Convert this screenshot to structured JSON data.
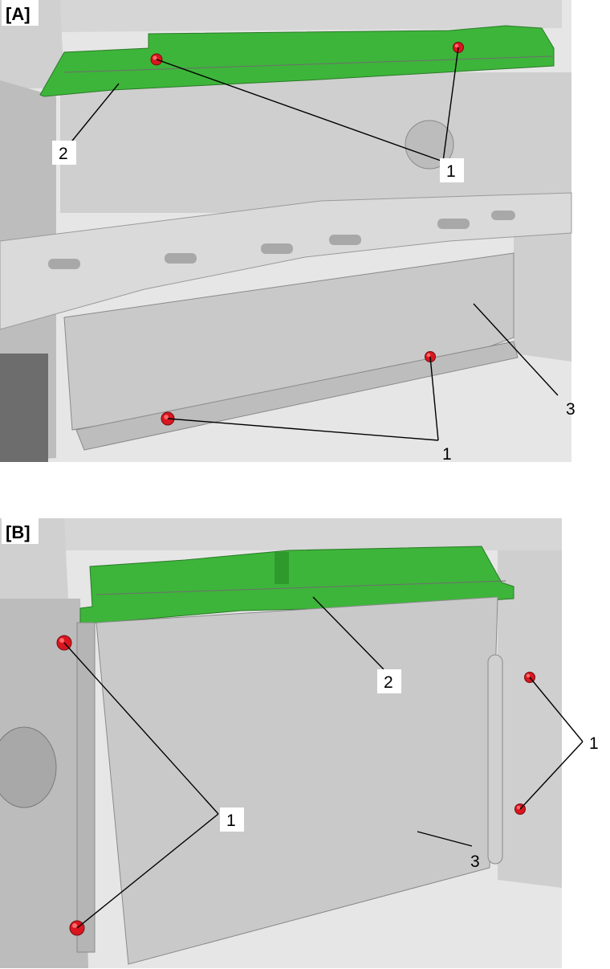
{
  "colors": {
    "highlight_part": "#3db53a",
    "fastener": "#d8161f",
    "component": "#c9c9c9",
    "background_part": "#e4e4e4"
  },
  "panels": [
    {
      "label": "[A]",
      "callouts": [
        {
          "text": "1",
          "component": "bolt"
        },
        {
          "text": "1",
          "component": "bolt"
        },
        {
          "text": "2",
          "component": "upper-bracket"
        },
        {
          "text": "3",
          "component": "radiator-panel"
        }
      ]
    },
    {
      "label": "[B]",
      "callouts": [
        {
          "text": "1",
          "component": "bolt"
        },
        {
          "text": "1",
          "component": "bolt"
        },
        {
          "text": "2",
          "component": "upper-bracket"
        },
        {
          "text": "3",
          "component": "radiator-panel"
        }
      ]
    }
  ]
}
